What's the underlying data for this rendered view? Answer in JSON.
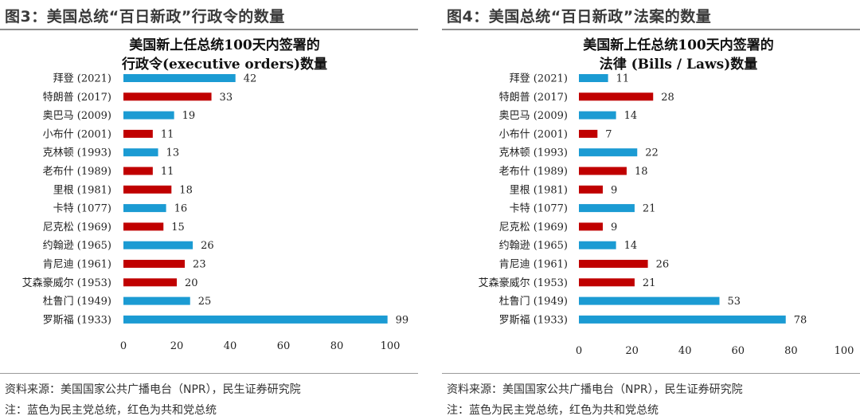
{
  "left": {
    "figure_title": "图3：美国总统“百日新政”行政令的数量",
    "note_source": "资料来源：美国国家公共广播电台（NPR），民生证券研究院",
    "note_color": "注：蓝色为民主党总统，红色为共和党总统",
    "chart_data": {
      "type": "bar",
      "orientation": "horizontal",
      "title": [
        "美国新上任总统100天内签署的",
        "行政令(executive orders)数量"
      ],
      "categories": [
        "拜登 (2021)",
        "特朗普 (2017)",
        "奥巴马 (2009)",
        "小布什 (2001)",
        "克林顿 (1993)",
        "老布什 (1989)",
        "里根 (1981)",
        "卡特 (1077)",
        "尼克松 (1969)",
        "约翰逊 (1965)",
        "肯尼迪 (1961)",
        "艾森豪威尔 (1953)",
        "杜鲁门 (1949)",
        "罗斯福 (1933)"
      ],
      "values": [
        42,
        33,
        19,
        11,
        13,
        11,
        18,
        16,
        15,
        26,
        23,
        20,
        25,
        99
      ],
      "party": [
        "D",
        "R",
        "D",
        "R",
        "D",
        "R",
        "R",
        "D",
        "R",
        "D",
        "R",
        "R",
        "D",
        "D"
      ],
      "xlim": [
        0,
        100
      ],
      "xticks": [
        0,
        20,
        40,
        60,
        80,
        100
      ],
      "grid": false
    }
  },
  "right": {
    "figure_title": "图4：美国总统“百日新政”法案的数量",
    "note_source": "资料来源：美国国家公共广播电台（NPR），民生证券研究院",
    "note_color": "注：蓝色为民主党总统，红色为共和党总统",
    "chart_data": {
      "type": "bar",
      "orientation": "horizontal",
      "title": [
        "美国新上任总统100天内签署的",
        "法律 (Bills / Laws)数量"
      ],
      "categories": [
        "拜登 (2021)",
        "特朗普 (2017)",
        "奥巴马 (2009)",
        "小布什 (2001)",
        "克林顿 (1993)",
        "老布什 (1989)",
        "里根 (1981)",
        "卡特 (1077)",
        "尼克松 (1969)",
        "约翰逊 (1965)",
        "肯尼迪 (1961)",
        "艾森豪威尔 (1953)",
        "杜鲁门 (1949)",
        "罗斯福 (1933)"
      ],
      "values": [
        11,
        28,
        14,
        7,
        22,
        18,
        9,
        21,
        9,
        14,
        26,
        21,
        53,
        78
      ],
      "party": [
        "D",
        "R",
        "D",
        "R",
        "D",
        "R",
        "R",
        "D",
        "R",
        "D",
        "R",
        "R",
        "D",
        "D"
      ],
      "xlim": [
        0,
        100
      ],
      "xticks": [
        0,
        20,
        40,
        60,
        80,
        100
      ],
      "grid": false
    }
  },
  "colors": {
    "democrat": "#1b9bd3",
    "republican": "#c00000"
  }
}
